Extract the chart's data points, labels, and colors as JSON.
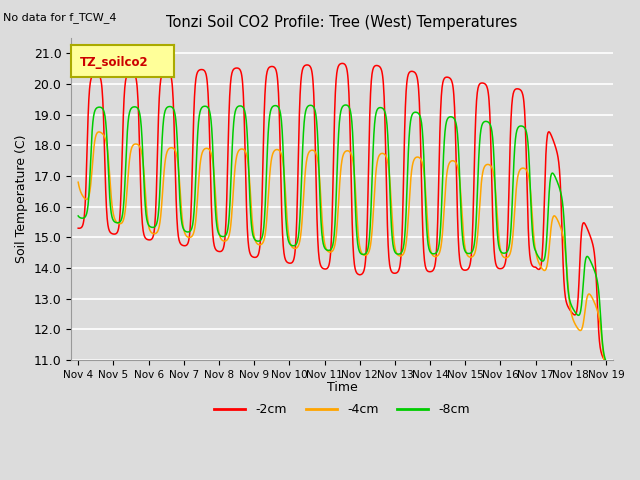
{
  "title": "Tonzi Soil CO2 Profile: Tree (West) Temperatures",
  "subtitle": "No data for f_TCW_4",
  "ylabel": "Soil Temperature (C)",
  "xlabel": "Time",
  "legend_label": "TZ_soilco2",
  "ylim": [
    11.0,
    21.5
  ],
  "yticks": [
    11.0,
    12.0,
    13.0,
    14.0,
    15.0,
    16.0,
    17.0,
    18.0,
    19.0,
    20.0,
    21.0
  ],
  "xtick_labels": [
    "Nov 4",
    "Nov 5",
    "Nov 6",
    "Nov 7",
    "Nov 8",
    "Nov 9",
    "Nov 10",
    "Nov 11",
    "Nov 12",
    "Nov 13",
    "Nov 14",
    "Nov 15",
    "Nov 16",
    "Nov 17",
    "Nov 18",
    "Nov 19"
  ],
  "line_colors": {
    "m2cm": "#ff0000",
    "m4cm": "#ffa500",
    "m8cm": "#00cc00"
  },
  "line_labels": [
    "-2cm",
    "-4cm",
    "-8cm"
  ],
  "bg_color": "#dcdcdc",
  "grid_color": "#ffffff",
  "legend_box_color": "#ffff99",
  "legend_box_edge": "#aaaa00",
  "fig_bg_color": "#dcdcdc"
}
